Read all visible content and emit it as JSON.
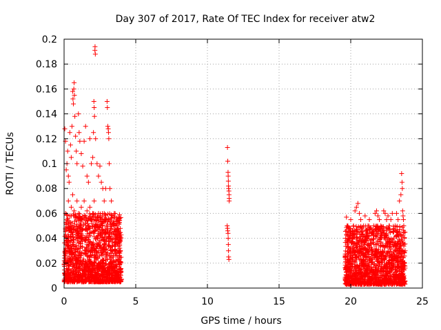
{
  "chart_data": {
    "type": "scatter",
    "title": "Day 307 of 2017, Rate Of TEC Index for receiver atw2",
    "xlabel": "GPS time / hours",
    "ylabel": "ROTI / TECUs",
    "xlim": [
      0,
      25
    ],
    "ylim": [
      0,
      0.2
    ],
    "xticks": [
      0,
      5,
      10,
      15,
      20,
      25
    ],
    "xtick_labels": [
      "0",
      "5",
      "10",
      "15",
      "20",
      "25"
    ],
    "yticks": [
      0,
      0.02,
      0.04,
      0.06,
      0.08,
      0.1,
      0.12,
      0.14,
      0.16,
      0.18,
      0.2
    ],
    "ytick_labels": [
      "0",
      "0.02",
      "0.04",
      "0.06",
      "0.08",
      "0.1",
      "0.12",
      "0.14",
      "0.16",
      "0.18",
      "0.2"
    ],
    "grid": true,
    "marker": "plus",
    "color": "#ff0000",
    "series": [
      {
        "values_description_omitted": true,
        "points": [
          [
            0.05,
            0.128
          ],
          [
            0.1,
            0.118
          ],
          [
            0.15,
            0.095
          ],
          [
            0.2,
            0.1
          ],
          [
            0.25,
            0.11
          ],
          [
            0.3,
            0.09
          ],
          [
            0.35,
            0.085
          ],
          [
            0.4,
            0.125
          ],
          [
            0.45,
            0.115
          ],
          [
            0.5,
            0.105
          ],
          [
            0.55,
            0.13
          ],
          [
            0.6,
            0.158
          ],
          [
            0.62,
            0.152
          ],
          [
            0.65,
            0.148
          ],
          [
            0.68,
            0.16
          ],
          [
            0.7,
            0.165
          ],
          [
            0.72,
            0.155
          ],
          [
            0.75,
            0.138
          ],
          [
            0.8,
            0.122
          ],
          [
            0.85,
            0.11
          ],
          [
            0.9,
            0.1
          ],
          [
            1.0,
            0.14
          ],
          [
            1.05,
            0.125
          ],
          [
            1.1,
            0.118
          ],
          [
            1.2,
            0.108
          ],
          [
            1.3,
            0.098
          ],
          [
            1.4,
            0.118
          ],
          [
            1.5,
            0.13
          ],
          [
            1.6,
            0.09
          ],
          [
            1.7,
            0.085
          ],
          [
            1.8,
            0.12
          ],
          [
            1.9,
            0.1
          ],
          [
            2.0,
            0.105
          ],
          [
            2.05,
            0.125
          ],
          [
            2.08,
            0.15
          ],
          [
            2.1,
            0.145
          ],
          [
            2.12,
            0.138
          ],
          [
            2.15,
            0.191
          ],
          [
            2.16,
            0.194
          ],
          [
            2.18,
            0.188
          ],
          [
            2.2,
            0.12
          ],
          [
            2.3,
            0.1
          ],
          [
            2.4,
            0.09
          ],
          [
            2.5,
            0.098
          ],
          [
            2.6,
            0.085
          ],
          [
            2.7,
            0.08
          ],
          [
            2.8,
            0.07
          ],
          [
            2.9,
            0.08
          ],
          [
            3.0,
            0.15
          ],
          [
            3.02,
            0.145
          ],
          [
            3.05,
            0.13
          ],
          [
            3.08,
            0.128
          ],
          [
            3.1,
            0.125
          ],
          [
            3.12,
            0.12
          ],
          [
            3.15,
            0.1
          ],
          [
            3.2,
            0.08
          ],
          [
            3.3,
            0.07
          ],
          [
            3.5,
            0.06
          ],
          [
            3.7,
            0.05
          ],
          [
            3.85,
            0.04
          ],
          [
            0.1,
            0.06
          ],
          [
            0.2,
            0.055
          ],
          [
            0.3,
            0.07
          ],
          [
            0.4,
            0.05
          ],
          [
            0.5,
            0.065
          ],
          [
            0.6,
            0.075
          ],
          [
            0.7,
            0.062
          ],
          [
            0.8,
            0.058
          ],
          [
            0.9,
            0.07
          ],
          [
            1.0,
            0.06
          ],
          [
            1.1,
            0.05
          ],
          [
            1.2,
            0.065
          ],
          [
            1.3,
            0.055
          ],
          [
            1.4,
            0.07
          ],
          [
            1.5,
            0.058
          ],
          [
            1.6,
            0.062
          ],
          [
            1.7,
            0.05
          ],
          [
            1.8,
            0.065
          ],
          [
            1.9,
            0.055
          ],
          [
            2.0,
            0.06
          ],
          [
            2.1,
            0.07
          ],
          [
            2.2,
            0.055
          ],
          [
            2.3,
            0.05
          ],
          [
            2.4,
            0.06
          ],
          [
            2.5,
            0.045
          ],
          [
            2.6,
            0.055
          ],
          [
            2.7,
            0.05
          ],
          [
            2.8,
            0.06
          ],
          [
            2.9,
            0.045
          ],
          [
            3.0,
            0.05
          ],
          [
            3.1,
            0.055
          ],
          [
            3.2,
            0.045
          ],
          [
            3.3,
            0.05
          ],
          [
            3.4,
            0.04
          ],
          [
            3.5,
            0.045
          ],
          [
            3.6,
            0.035
          ],
          [
            3.7,
            0.04
          ],
          [
            3.8,
            0.03
          ],
          [
            3.9,
            0.02
          ],
          [
            3.95,
            0.015
          ],
          [
            11.4,
            0.113
          ],
          [
            11.42,
            0.102
          ],
          [
            11.44,
            0.093
          ],
          [
            11.45,
            0.09
          ],
          [
            11.46,
            0.086
          ],
          [
            11.47,
            0.082
          ],
          [
            11.48,
            0.08
          ],
          [
            11.5,
            0.078
          ],
          [
            11.51,
            0.075
          ],
          [
            11.52,
            0.072
          ],
          [
            11.4,
            0.048
          ],
          [
            11.42,
            0.046
          ],
          [
            11.44,
            0.044
          ],
          [
            11.45,
            0.04
          ],
          [
            11.46,
            0.035
          ],
          [
            11.47,
            0.03
          ],
          [
            11.48,
            0.025
          ],
          [
            11.5,
            0.023
          ],
          [
            11.38,
            0.05
          ],
          [
            11.52,
            0.07
          ],
          [
            19.7,
            0.057
          ],
          [
            19.8,
            0.05
          ],
          [
            19.9,
            0.045
          ],
          [
            20.0,
            0.055
          ],
          [
            20.1,
            0.04
          ],
          [
            20.2,
            0.05
          ],
          [
            20.3,
            0.062
          ],
          [
            20.4,
            0.065
          ],
          [
            20.5,
            0.068
          ],
          [
            20.6,
            0.06
          ],
          [
            20.7,
            0.055
          ],
          [
            20.8,
            0.045
          ],
          [
            20.9,
            0.05
          ],
          [
            21.0,
            0.058
          ],
          [
            21.1,
            0.04
          ],
          [
            21.2,
            0.05
          ],
          [
            21.3,
            0.055
          ],
          [
            21.4,
            0.048
          ],
          [
            21.5,
            0.045
          ],
          [
            21.6,
            0.05
          ],
          [
            21.7,
            0.06
          ],
          [
            21.8,
            0.062
          ],
          [
            21.9,
            0.058
          ],
          [
            22.0,
            0.055
          ],
          [
            22.1,
            0.05
          ],
          [
            22.2,
            0.048
          ],
          [
            22.3,
            0.062
          ],
          [
            22.4,
            0.06
          ],
          [
            22.5,
            0.055
          ],
          [
            22.6,
            0.058
          ],
          [
            22.7,
            0.05
          ],
          [
            22.8,
            0.055
          ],
          [
            22.9,
            0.06
          ],
          [
            23.0,
            0.045
          ],
          [
            23.1,
            0.05
          ],
          [
            23.2,
            0.06
          ],
          [
            23.3,
            0.055
          ],
          [
            23.4,
            0.07
          ],
          [
            23.5,
            0.075
          ],
          [
            23.55,
            0.092
          ],
          [
            23.58,
            0.085
          ],
          [
            23.6,
            0.08
          ],
          [
            23.62,
            0.062
          ],
          [
            23.65,
            0.058
          ],
          [
            23.68,
            0.055
          ],
          [
            23.7,
            0.05
          ],
          [
            23.72,
            0.045
          ],
          [
            23.75,
            0.04
          ],
          [
            19.75,
            0.02
          ],
          [
            23.8,
            0.03
          ]
        ]
      }
    ],
    "dense_regions": [
      {
        "x_range": [
          0.0,
          4.0
        ],
        "y_range": [
          0.005,
          0.06
        ]
      },
      {
        "x_range": [
          19.6,
          23.8
        ],
        "y_range": [
          0.003,
          0.05
        ]
      }
    ]
  }
}
